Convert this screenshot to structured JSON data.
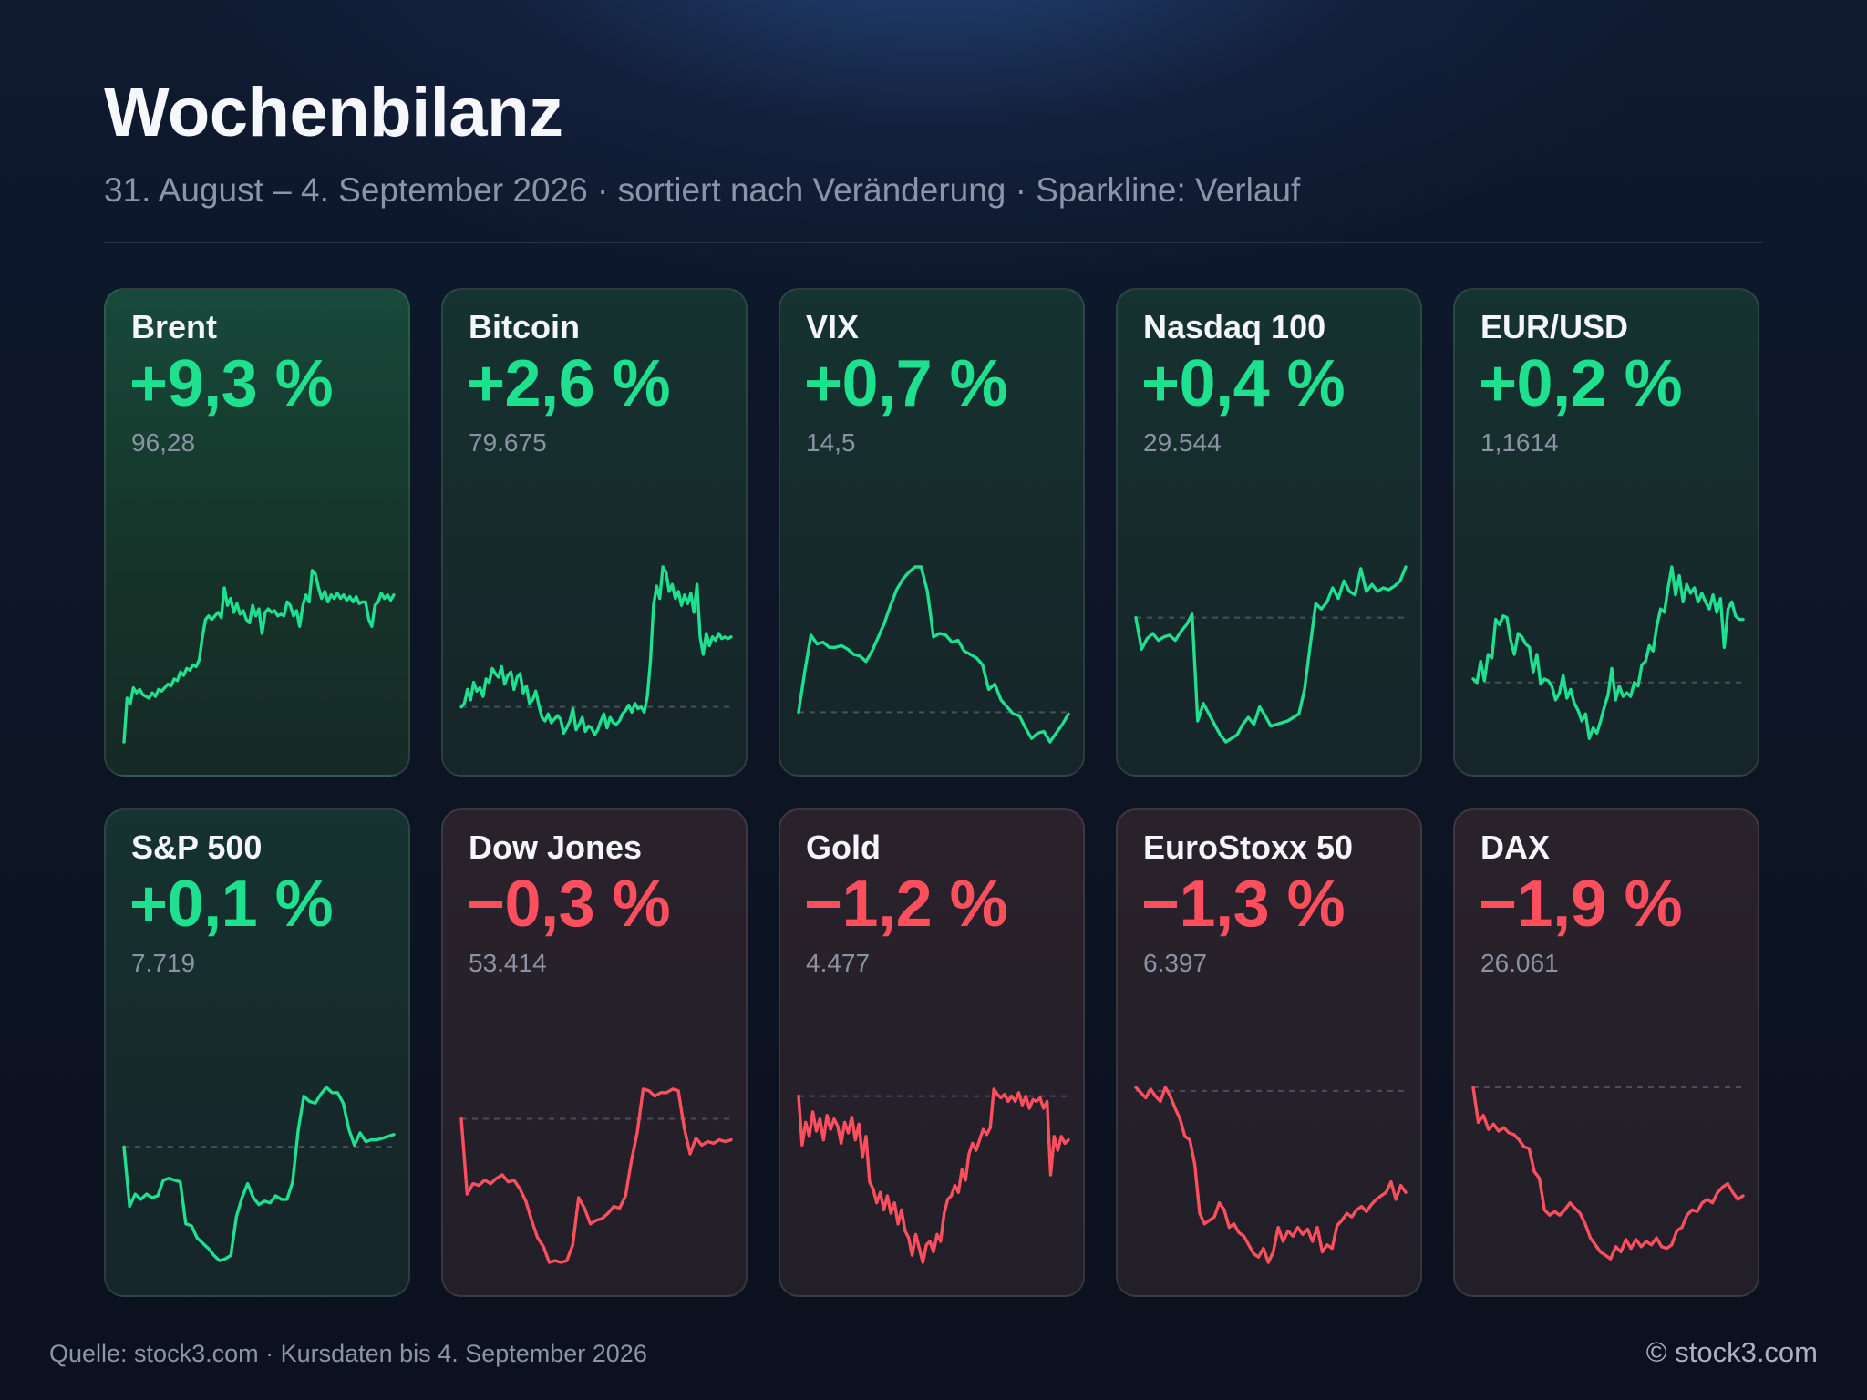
{
  "header": {
    "title": "Wochenbilanz",
    "subtitle": "31. August – 4. September 2026 · sortiert nach Veränderung · Sparkline: Verlauf"
  },
  "footer": {
    "source": "Quelle: stock3.com · Kursdaten bis 4. September 2026",
    "copyright": "© stock3.com"
  },
  "colors": {
    "positive": "#1ee08e",
    "negative": "#ff4f5e",
    "baseline": "#5a6475"
  },
  "chart_data": {
    "type": "line",
    "cards": [
      {
        "name": "Brent",
        "change": "+9,3 %",
        "price": "96,28",
        "direction": "up",
        "tone": "up-strong",
        "baseline": null,
        "values": [
          0.0,
          0.25,
          0.22,
          0.31,
          0.28,
          0.3,
          0.27,
          0.26,
          0.25,
          0.28,
          0.26,
          0.3,
          0.29,
          0.31,
          0.33,
          0.32,
          0.36,
          0.35,
          0.4,
          0.38,
          0.42,
          0.41,
          0.44,
          0.43,
          0.47,
          0.6,
          0.7,
          0.72,
          0.7,
          0.72,
          0.74,
          0.71,
          0.88,
          0.78,
          0.82,
          0.74,
          0.79,
          0.73,
          0.75,
          0.7,
          0.68,
          0.78,
          0.72,
          0.76,
          0.62,
          0.74,
          0.76,
          0.74,
          0.75,
          0.72,
          0.73,
          0.72,
          0.8,
          0.78,
          0.72,
          0.75,
          0.66,
          0.78,
          0.84,
          0.8,
          0.98,
          0.96,
          0.88,
          0.82,
          0.86,
          0.8,
          0.84,
          0.82,
          0.85,
          0.82,
          0.84,
          0.81,
          0.83,
          0.8,
          0.83,
          0.79,
          0.8,
          0.8,
          0.7,
          0.66,
          0.78,
          0.8,
          0.85,
          0.82,
          0.84,
          0.81,
          0.84
        ]
      },
      {
        "name": "Bitcoin",
        "change": "+2,6 %",
        "price": "79.675",
        "direction": "up",
        "tone": "up",
        "baseline": 0.2,
        "values": [
          0.2,
          0.22,
          0.3,
          0.24,
          0.34,
          0.29,
          0.31,
          0.26,
          0.36,
          0.34,
          0.42,
          0.39,
          0.37,
          0.43,
          0.33,
          0.38,
          0.4,
          0.3,
          0.37,
          0.39,
          0.28,
          0.32,
          0.22,
          0.24,
          0.29,
          0.21,
          0.14,
          0.12,
          0.16,
          0.11,
          0.13,
          0.15,
          0.13,
          0.05,
          0.08,
          0.12,
          0.19,
          0.07,
          0.1,
          0.14,
          0.06,
          0.09,
          0.08,
          0.04,
          0.07,
          0.12,
          0.16,
          0.08,
          0.14,
          0.11,
          0.1,
          0.12,
          0.16,
          0.18,
          0.21,
          0.17,
          0.22,
          0.19,
          0.2,
          0.17,
          0.26,
          0.46,
          0.78,
          0.89,
          0.82,
          1.0,
          0.97,
          0.86,
          0.9,
          0.82,
          0.86,
          0.78,
          0.84,
          0.79,
          0.85,
          0.74,
          0.9,
          0.6,
          0.5,
          0.62,
          0.55,
          0.6,
          0.58,
          0.62,
          0.59,
          0.6,
          0.59,
          0.6
        ]
      },
      {
        "name": "VIX",
        "change": "+0,7 %",
        "price": "14,5",
        "direction": "up",
        "tone": "up",
        "baseline": 0.17,
        "values": [
          0.17,
          0.4,
          0.61,
          0.56,
          0.57,
          0.54,
          0.54,
          0.55,
          0.53,
          0.5,
          0.49,
          0.46,
          0.52,
          0.6,
          0.68,
          0.78,
          0.87,
          0.93,
          0.97,
          1.0,
          1.0,
          0.86,
          0.6,
          0.62,
          0.61,
          0.57,
          0.58,
          0.52,
          0.5,
          0.48,
          0.44,
          0.3,
          0.33,
          0.24,
          0.2,
          0.16,
          0.15,
          0.08,
          0.02,
          0.05,
          0.06,
          0.0,
          0.05,
          0.1,
          0.16
        ]
      },
      {
        "name": "Nasdaq 100",
        "change": "+0,4 %",
        "price": "29.544",
        "direction": "up",
        "tone": "up",
        "baseline": 0.71,
        "values": [
          0.71,
          0.53,
          0.59,
          0.62,
          0.58,
          0.6,
          0.61,
          0.58,
          0.63,
          0.67,
          0.73,
          0.12,
          0.22,
          0.16,
          0.1,
          0.04,
          0.0,
          0.02,
          0.04,
          0.1,
          0.14,
          0.1,
          0.2,
          0.15,
          0.09,
          0.1,
          0.11,
          0.12,
          0.14,
          0.16,
          0.3,
          0.55,
          0.79,
          0.76,
          0.8,
          0.88,
          0.82,
          0.92,
          0.86,
          0.84,
          0.99,
          0.86,
          0.9,
          0.86,
          0.88,
          0.87,
          0.89,
          0.92,
          1.0
        ]
      },
      {
        "name": "EUR/USD",
        "change": "+0,2 %",
        "price": "1,1614",
        "direction": "up",
        "tone": "up",
        "baseline": 0.34,
        "values": [
          0.36,
          0.34,
          0.46,
          0.35,
          0.5,
          0.48,
          0.7,
          0.67,
          0.72,
          0.71,
          0.58,
          0.5,
          0.62,
          0.6,
          0.56,
          0.54,
          0.4,
          0.5,
          0.33,
          0.36,
          0.35,
          0.32,
          0.24,
          0.28,
          0.38,
          0.25,
          0.3,
          0.22,
          0.18,
          0.12,
          0.16,
          0.02,
          0.08,
          0.05,
          0.12,
          0.2,
          0.27,
          0.42,
          0.24,
          0.32,
          0.26,
          0.28,
          0.26,
          0.34,
          0.32,
          0.44,
          0.46,
          0.55,
          0.52,
          0.66,
          0.76,
          0.74,
          0.88,
          1.0,
          0.84,
          0.95,
          0.8,
          0.9,
          0.85,
          0.88,
          0.8,
          0.85,
          0.8,
          0.76,
          0.84,
          0.74,
          0.82,
          0.54,
          0.76,
          0.8,
          0.72,
          0.7,
          0.7
        ]
      },
      {
        "name": "S&P 500",
        "change": "+0,1 %",
        "price": "7.719",
        "direction": "up",
        "tone": "up",
        "baseline": 0.66,
        "values": [
          0.66,
          0.32,
          0.39,
          0.36,
          0.39,
          0.37,
          0.38,
          0.47,
          0.48,
          0.47,
          0.46,
          0.22,
          0.21,
          0.14,
          0.11,
          0.08,
          0.04,
          0.01,
          0.02,
          0.04,
          0.26,
          0.37,
          0.45,
          0.37,
          0.33,
          0.35,
          0.34,
          0.38,
          0.36,
          0.36,
          0.46,
          0.76,
          0.95,
          0.92,
          0.91,
          0.96,
          1.0,
          0.97,
          0.97,
          0.91,
          0.76,
          0.67,
          0.74,
          0.69,
          0.7,
          0.7,
          0.71,
          0.72,
          0.73
        ]
      },
      {
        "name": "Dow Jones",
        "change": "−0,3 %",
        "price": "53.414",
        "direction": "down",
        "tone": "down",
        "baseline": 0.82,
        "values": [
          0.82,
          0.39,
          0.45,
          0.44,
          0.47,
          0.45,
          0.48,
          0.5,
          0.46,
          0.47,
          0.42,
          0.35,
          0.24,
          0.14,
          0.09,
          0.0,
          0.01,
          0.0,
          0.01,
          0.1,
          0.37,
          0.31,
          0.22,
          0.24,
          0.25,
          0.28,
          0.32,
          0.31,
          0.38,
          0.58,
          0.74,
          0.99,
          0.98,
          0.95,
          0.97,
          0.97,
          0.99,
          0.98,
          0.77,
          0.62,
          0.71,
          0.67,
          0.69,
          0.68,
          0.7,
          0.69,
          0.7
        ]
      },
      {
        "name": "Gold",
        "change": "−1,2 %",
        "price": "4.477",
        "direction": "down",
        "tone": "down",
        "baseline": 0.95,
        "values": [
          0.95,
          0.67,
          0.8,
          0.72,
          0.86,
          0.75,
          0.82,
          0.7,
          0.84,
          0.76,
          0.82,
          0.78,
          0.68,
          0.8,
          0.74,
          0.83,
          0.7,
          0.79,
          0.6,
          0.72,
          0.46,
          0.42,
          0.34,
          0.4,
          0.3,
          0.38,
          0.28,
          0.34,
          0.22,
          0.3,
          0.18,
          0.14,
          0.04,
          0.16,
          0.08,
          0.0,
          0.1,
          0.12,
          0.06,
          0.16,
          0.12,
          0.28,
          0.36,
          0.38,
          0.44,
          0.4,
          0.53,
          0.47,
          0.62,
          0.68,
          0.64,
          0.7,
          0.76,
          0.73,
          0.77,
          0.99,
          0.96,
          0.94,
          0.96,
          0.92,
          0.95,
          0.92,
          0.97,
          0.9,
          0.95,
          0.88,
          0.93,
          0.92,
          0.94,
          0.88,
          0.92,
          0.5,
          0.72,
          0.64,
          0.72,
          0.68,
          0.7
        ]
      },
      {
        "name": "EuroStoxx 50",
        "change": "−1,3 %",
        "price": "6.397",
        "direction": "down",
        "tone": "down",
        "baseline": 0.98,
        "values": [
          1.0,
          0.97,
          0.94,
          0.99,
          0.95,
          0.92,
          1.0,
          0.95,
          0.88,
          0.82,
          0.72,
          0.7,
          0.56,
          0.28,
          0.22,
          0.24,
          0.26,
          0.34,
          0.3,
          0.2,
          0.22,
          0.17,
          0.15,
          0.1,
          0.05,
          0.03,
          0.08,
          0.0,
          0.06,
          0.2,
          0.12,
          0.18,
          0.15,
          0.2,
          0.16,
          0.19,
          0.12,
          0.2,
          0.06,
          0.1,
          0.08,
          0.21,
          0.24,
          0.28,
          0.26,
          0.3,
          0.32,
          0.29,
          0.33,
          0.36,
          0.38,
          0.4,
          0.46,
          0.36,
          0.44,
          0.4
        ]
      },
      {
        "name": "DAX",
        "change": "−1,9 %",
        "price": "26.061",
        "direction": "down",
        "tone": "down",
        "baseline": 1.0,
        "values": [
          1.0,
          0.8,
          0.84,
          0.76,
          0.79,
          0.75,
          0.77,
          0.74,
          0.73,
          0.7,
          0.66,
          0.65,
          0.52,
          0.48,
          0.3,
          0.27,
          0.29,
          0.27,
          0.3,
          0.34,
          0.31,
          0.28,
          0.22,
          0.14,
          0.1,
          0.06,
          0.04,
          0.02,
          0.09,
          0.06,
          0.13,
          0.08,
          0.13,
          0.09,
          0.12,
          0.1,
          0.14,
          0.09,
          0.08,
          0.1,
          0.18,
          0.2,
          0.27,
          0.3,
          0.29,
          0.34,
          0.36,
          0.34,
          0.4,
          0.43,
          0.45,
          0.4,
          0.36,
          0.38
        ]
      }
    ]
  }
}
